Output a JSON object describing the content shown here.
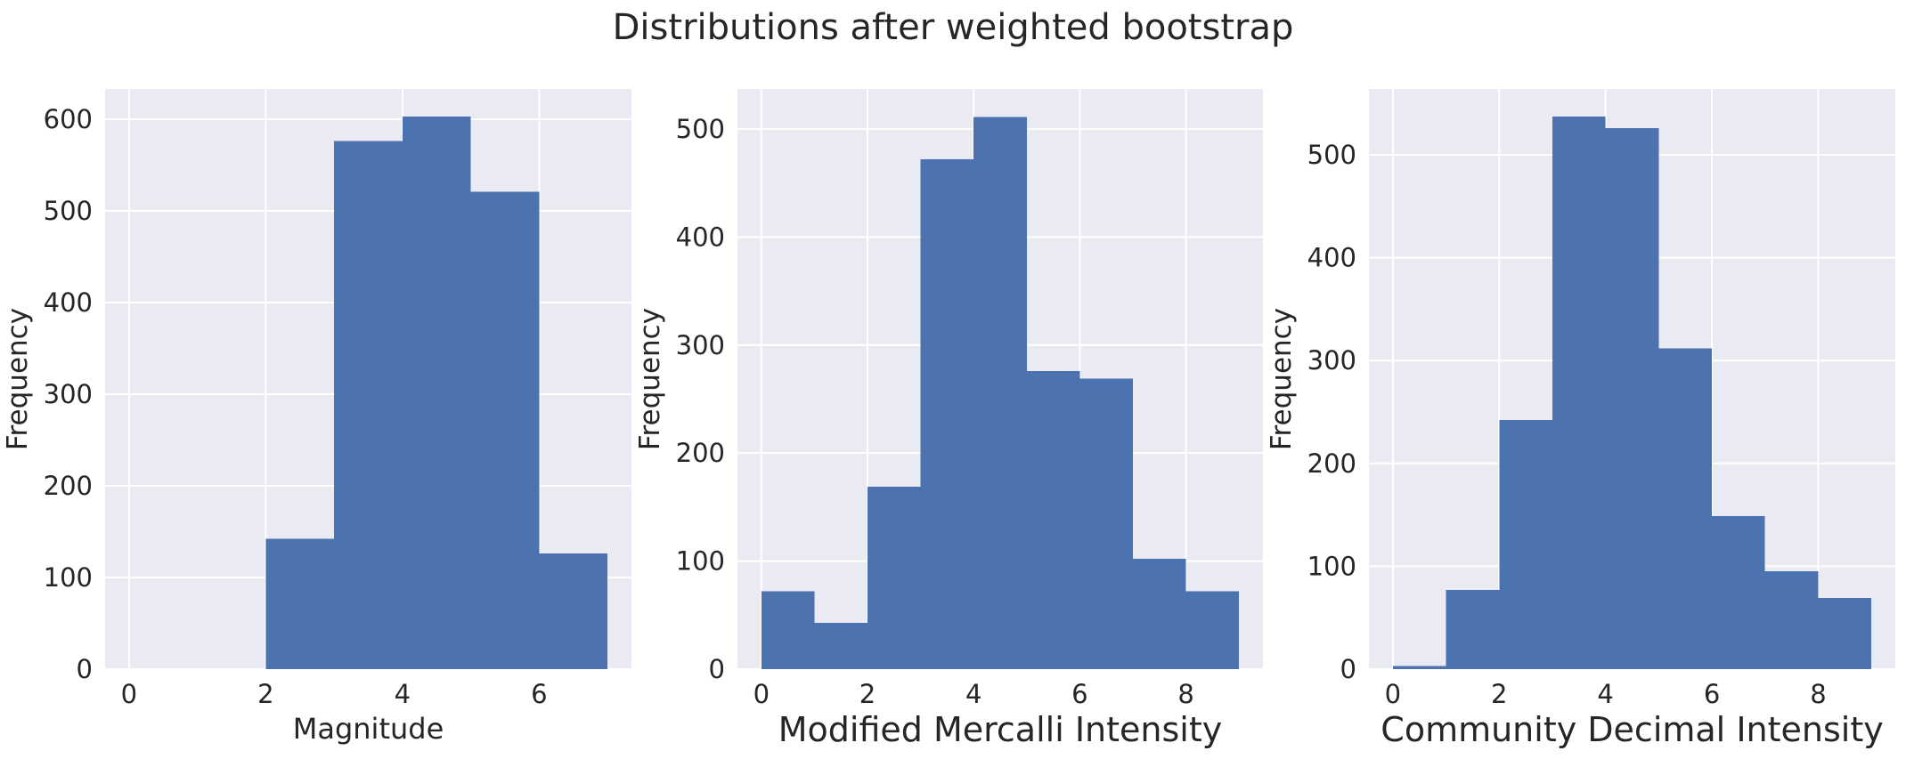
{
  "figure": {
    "suptitle": "Distributions after weighted bootstrap"
  },
  "colors": {
    "bar": "#4c72b0",
    "panel_background": "#eaeaf2",
    "grid": "#ffffff",
    "text": "#262626"
  },
  "chart_data": [
    {
      "type": "bar",
      "histogram": true,
      "title": "",
      "xlabel": "Magnitude",
      "ylabel": "Frequency",
      "bin_edges": [
        0,
        1,
        2,
        3,
        4,
        5,
        6,
        7
      ],
      "values": [
        0,
        0,
        142,
        576,
        603,
        521,
        126
      ],
      "xlim": [
        -0.35,
        7.35
      ],
      "ylim": [
        0,
        633
      ],
      "xticks": [
        0,
        2,
        4,
        6
      ],
      "yticks": [
        0,
        100,
        200,
        300,
        400,
        500,
        600
      ],
      "grid": true,
      "legend": "none"
    },
    {
      "type": "bar",
      "histogram": true,
      "title": "",
      "xlabel": "Modified Mercalli Intensity",
      "ylabel": "Frequency",
      "bin_edges": [
        0,
        1,
        2,
        3,
        4,
        5,
        6,
        7,
        8,
        9
      ],
      "values": [
        72,
        43,
        169,
        472,
        511,
        276,
        269,
        102,
        72
      ],
      "xlim": [
        -0.45,
        9.45
      ],
      "ylim": [
        0,
        537
      ],
      "xticks": [
        0,
        2,
        4,
        6,
        8
      ],
      "yticks": [
        0,
        100,
        200,
        300,
        400,
        500
      ],
      "grid": true,
      "legend": "none"
    },
    {
      "type": "bar",
      "histogram": true,
      "title": "",
      "xlabel": "Community Decimal Intensity",
      "ylabel": "Frequency",
      "bin_edges": [
        0,
        1,
        2,
        3,
        4,
        5,
        6,
        7,
        8,
        9
      ],
      "values": [
        3,
        77,
        242,
        537,
        526,
        312,
        149,
        95,
        69
      ],
      "xlim": [
        -0.45,
        9.45
      ],
      "ylim": [
        0,
        564
      ],
      "xticks": [
        0,
        2,
        4,
        6,
        8
      ],
      "yticks": [
        0,
        100,
        200,
        300,
        400,
        500
      ],
      "grid": true,
      "legend": "none"
    }
  ]
}
